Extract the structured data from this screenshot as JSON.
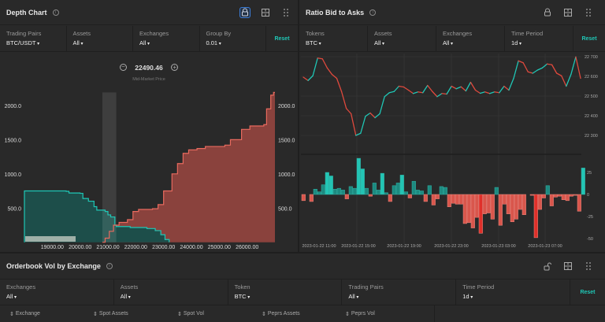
{
  "depth": {
    "title": "Depth Chart",
    "filters": [
      {
        "label": "Trading Pairs",
        "value": "BTC/USDT"
      },
      {
        "label": "Assets",
        "value": "All"
      },
      {
        "label": "Exchanges",
        "value": "All"
      },
      {
        "label": "Group By",
        "value": "0.01"
      }
    ],
    "reset": "Reset",
    "mid_price": "22490.46",
    "mid_label": "Mid-Market Price",
    "watermark": "Powered by SCICHART"
  },
  "ratio": {
    "title": "Ratio Bid to Asks",
    "filters": [
      {
        "label": "Tokens",
        "value": "BTC"
      },
      {
        "label": "Assets",
        "value": "All"
      },
      {
        "label": "Exchanges",
        "value": "All"
      },
      {
        "label": "Time Period",
        "value": "1d"
      }
    ],
    "reset": "Reset"
  },
  "orderbook": {
    "title": "Orderbook Vol by Exchange",
    "filters": [
      {
        "label": "Exchanges",
        "value": "All"
      },
      {
        "label": "Assets",
        "value": "All"
      },
      {
        "label": "Token",
        "value": "BTC"
      },
      {
        "label": "Trading Pairs",
        "value": "All"
      },
      {
        "label": "Time Period",
        "value": "1d"
      }
    ],
    "reset": "Reset",
    "columns": [
      "Exchange",
      "Spot Assets",
      "Spot Vol",
      "Peprs Assets",
      "Peprs Vol"
    ]
  },
  "colors": {
    "bid": "#1fc7b6",
    "ask": "#e0493d",
    "active": "#3a7bd5"
  },
  "chart_data": [
    {
      "type": "area",
      "name": "depth",
      "xlim": [
        18000,
        27000
      ],
      "ylim": [
        0,
        2190
      ],
      "xticks": [
        "19000.00",
        "20000.00",
        "21000.00",
        "22000.00",
        "23000.00",
        "24000.00",
        "25000.00",
        "26000.00"
      ],
      "yticks": [
        "500.0",
        "1000.0",
        "1500.0",
        "2000.0"
      ],
      "bids": [
        [
          18000,
          750
        ],
        [
          19500,
          745
        ],
        [
          19600,
          720
        ],
        [
          20000,
          715
        ],
        [
          20100,
          640
        ],
        [
          20300,
          600
        ],
        [
          20500,
          520
        ],
        [
          20600,
          470
        ],
        [
          20900,
          450
        ],
        [
          21000,
          400
        ],
        [
          21100,
          370
        ],
        [
          21250,
          250
        ],
        [
          21300,
          230
        ],
        [
          21800,
          215
        ],
        [
          22400,
          200
        ],
        [
          22700,
          170
        ],
        [
          22900,
          110
        ],
        [
          23050,
          40
        ],
        [
          23200,
          0
        ]
      ],
      "asks": [
        [
          20800,
          0
        ],
        [
          20900,
          60
        ],
        [
          21050,
          160
        ],
        [
          21200,
          250
        ],
        [
          21400,
          290
        ],
        [
          21700,
          330
        ],
        [
          21900,
          450
        ],
        [
          22100,
          480
        ],
        [
          22600,
          490
        ],
        [
          22800,
          550
        ],
        [
          23000,
          750
        ],
        [
          23300,
          1000
        ],
        [
          23500,
          1150
        ],
        [
          23700,
          1300
        ],
        [
          23900,
          1350
        ],
        [
          24200,
          1370
        ],
        [
          24500,
          1400
        ],
        [
          25200,
          1420
        ],
        [
          25400,
          1500
        ],
        [
          25800,
          1650
        ],
        [
          26100,
          1700
        ],
        [
          26600,
          1720
        ],
        [
          26700,
          1950
        ],
        [
          26850,
          2150
        ],
        [
          26950,
          2190
        ]
      ]
    },
    {
      "type": "line",
      "name": "ratio-line",
      "ylim": [
        22290,
        22720
      ],
      "yticks": [
        "22 300",
        "22 400",
        "22 500",
        "22 600",
        "22 700"
      ],
      "values": [
        22596,
        22579,
        22603,
        22693,
        22689,
        22643,
        22610,
        22590,
        22523,
        22437,
        22410,
        22300,
        22311,
        22397,
        22414,
        22390,
        22410,
        22497,
        22517,
        22523,
        22550,
        22546,
        22530,
        22513,
        22521,
        22517,
        22554,
        22523,
        22497,
        22513,
        22510,
        22550,
        22537,
        22547,
        22526,
        22570,
        22530,
        22514,
        22521,
        22513,
        22521,
        22517,
        22550,
        22530,
        22590,
        22679,
        22669,
        22623,
        22616,
        22632,
        22643,
        22663,
        22659,
        22616,
        22603,
        22550,
        22610,
        22699,
        22590
      ]
    },
    {
      "type": "bar",
      "name": "ratio-bars",
      "ylim": [
        -55,
        45
      ],
      "yticks": [
        "25",
        "0",
        "-25",
        "-50"
      ],
      "xticks": [
        "2023-01-22 11:00",
        "2023-01-22 15:00",
        "2023-01-22 19:00",
        "2023-01-22 23:00",
        "2023-01-23 03:00",
        "2023-01-23 07:00"
      ],
      "values": [
        -7,
        0,
        -8,
        6,
        3,
        11,
        25,
        21,
        6,
        7,
        5,
        -5,
        9,
        7,
        41,
        29,
        7,
        -2,
        13,
        5,
        24,
        2,
        -8,
        10,
        13,
        22,
        3,
        -4,
        15,
        5,
        4,
        -8,
        10,
        -12,
        -5,
        9,
        8,
        -14,
        -10,
        -11,
        -11,
        -33,
        -32,
        -38,
        -26,
        -44,
        -22,
        -21,
        -28,
        8,
        -35,
        -11,
        -22,
        -31,
        -28,
        -17,
        -23,
        0,
        -1,
        -49,
        -17,
        -4,
        10,
        -13,
        -3,
        -2,
        -6,
        -7,
        -2,
        -1,
        -19,
        30
      ]
    }
  ]
}
